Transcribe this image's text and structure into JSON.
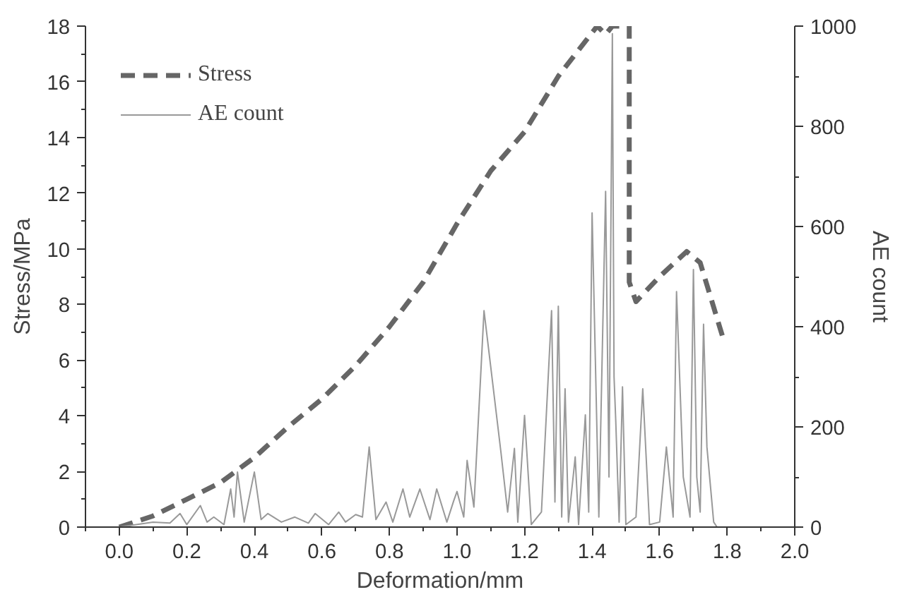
{
  "chart_data": {
    "type": "line",
    "xlabel": "Deformation/mm",
    "ylabel": "Stress/MPa",
    "y2label": "AE count",
    "xlim": [
      -0.1,
      2.0
    ],
    "xticks": [
      {
        "value": 0,
        "label": "0.0"
      },
      {
        "value": 0.2,
        "label": "0.2"
      },
      {
        "value": 0.4,
        "label": "0.4"
      },
      {
        "value": 0.6,
        "label": "0.6"
      },
      {
        "value": 0.8,
        "label": "0.8"
      },
      {
        "value": 1.0,
        "label": "1.0"
      },
      {
        "value": 1.2,
        "label": "1.2"
      },
      {
        "value": 1.4,
        "label": "1.4"
      },
      {
        "value": 1.6,
        "label": "1.6"
      },
      {
        "value": 1.8,
        "label": "1.8"
      },
      {
        "value": 2.0,
        "label": "2.0"
      }
    ],
    "ylim": [
      0,
      18
    ],
    "yticks": [
      0,
      2,
      4,
      6,
      8,
      10,
      12,
      14,
      16,
      18
    ],
    "y2lim": [
      0,
      1000
    ],
    "y2ticks": [
      0,
      200,
      400,
      600,
      800,
      1000
    ],
    "grid": false,
    "legend": "top left",
    "series": [
      {
        "name": "Stress",
        "color": "#666666",
        "line_style": "dashed",
        "axis": "y",
        "x": [
          0,
          0.1,
          0.2,
          0.3,
          0.4,
          0.5,
          0.6,
          0.7,
          0.8,
          0.9,
          1.0,
          1.1,
          1.2,
          1.3,
          1.415,
          1.44,
          1.46,
          1.51,
          1.51,
          1.53,
          1.6,
          1.68,
          1.72,
          1.79
        ],
        "values": [
          0,
          0.4,
          1.0,
          1.6,
          2.5,
          3.6,
          4.6,
          5.8,
          7.2,
          8.8,
          10.9,
          12.8,
          14.2,
          16.2,
          18.0,
          17.7,
          18.0,
          18.0,
          8.8,
          8.1,
          9.0,
          9.9,
          9.5,
          6.7
        ]
      },
      {
        "name": "AE count",
        "color": "#999999",
        "line_style": "solid",
        "axis": "y2",
        "x": [
          0,
          0.05,
          0.1,
          0.15,
          0.18,
          0.2,
          0.24,
          0.26,
          0.28,
          0.31,
          0.33,
          0.34,
          0.35,
          0.37,
          0.4,
          0.42,
          0.44,
          0.48,
          0.52,
          0.56,
          0.58,
          0.62,
          0.65,
          0.67,
          0.7,
          0.72,
          0.74,
          0.76,
          0.79,
          0.81,
          0.84,
          0.86,
          0.89,
          0.92,
          0.94,
          0.97,
          0.99,
          1.0,
          1.02,
          1.03,
          1.05,
          1.08,
          1.13,
          1.15,
          1.17,
          1.18,
          1.2,
          1.22,
          1.25,
          1.28,
          1.29,
          1.3,
          1.31,
          1.32,
          1.33,
          1.35,
          1.36,
          1.38,
          1.39,
          1.4,
          1.42,
          1.44,
          1.45,
          1.46,
          1.465,
          1.47,
          1.48,
          1.49,
          1.5,
          1.53,
          1.55,
          1.57,
          1.6,
          1.62,
          1.64,
          1.65,
          1.67,
          1.69,
          1.7,
          1.71,
          1.72,
          1.73,
          1.74,
          1.76,
          1.77
        ],
        "values": [
          0,
          5,
          10,
          8,
          27,
          5,
          43,
          10,
          20,
          5,
          76,
          20,
          110,
          10,
          110,
          15,
          27,
          10,
          20,
          8,
          27,
          5,
          30,
          10,
          25,
          20,
          160,
          15,
          50,
          10,
          76,
          20,
          76,
          15,
          76,
          10,
          52,
          71,
          20,
          133,
          40,
          432,
          150,
          30,
          157,
          10,
          223,
          5,
          30,
          432,
          50,
          441,
          20,
          276,
          10,
          140,
          5,
          224,
          30,
          627,
          20,
          670,
          100,
          985,
          300,
          213,
          10,
          280,
          5,
          20,
          276,
          5,
          10,
          160,
          20,
          470,
          100,
          20,
          514,
          100,
          30,
          405,
          160,
          10,
          0
        ]
      }
    ]
  }
}
